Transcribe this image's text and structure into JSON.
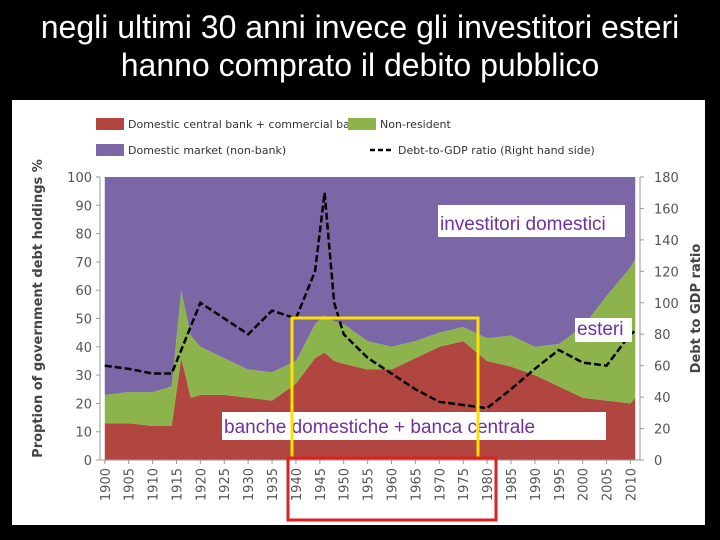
{
  "chart_data": {
    "type": "stacked-area",
    "title": "negli ultimi 30 anni invece gli investitori esteri hanno comprato il debito pubblico",
    "x": [
      1900,
      1905,
      1910,
      1914,
      1916,
      1918,
      1920,
      1925,
      1930,
      1935,
      1940,
      1944,
      1946,
      1948,
      1950,
      1955,
      1960,
      1965,
      1970,
      1975,
      1980,
      1985,
      1990,
      1995,
      2000,
      2005,
      2010,
      2011
    ],
    "xlim": [
      1899,
      2012
    ],
    "xticks": [
      1900,
      1905,
      1910,
      1915,
      1920,
      1925,
      1930,
      1935,
      1940,
      1945,
      1950,
      1955,
      1960,
      1965,
      1970,
      1975,
      1980,
      1985,
      1990,
      1995,
      2000,
      2005,
      2010
    ],
    "ylim": [
      0,
      100
    ],
    "yticks": [
      0,
      10,
      20,
      30,
      40,
      50,
      60,
      70,
      80,
      90,
      100
    ],
    "y2lim": [
      0,
      180
    ],
    "y2ticks": [
      0,
      20,
      40,
      60,
      80,
      100,
      120,
      140,
      160,
      180
    ],
    "y_label": "Proption of government debt holdings %",
    "y2_label": "Debt to GDP ratio",
    "series": [
      {
        "name": "Domestic central bank + commercial bank",
        "color": "#b0463f",
        "values": [
          13,
          13,
          12,
          12,
          36,
          22,
          23,
          23,
          22,
          21,
          27,
          36,
          38,
          35,
          34,
          32,
          32,
          36,
          40,
          42,
          35,
          33,
          30,
          26,
          22,
          21,
          20,
          22
        ]
      },
      {
        "name": "Non-resident",
        "color": "#8db34d",
        "values": [
          10,
          11,
          12,
          14,
          24,
          22,
          17,
          13,
          10,
          10,
          8,
          12,
          13,
          14,
          14,
          10,
          8,
          6,
          5,
          5,
          8,
          11,
          10,
          15,
          25,
          37,
          48,
          49
        ]
      },
      {
        "name": "Domestic market (non-bank)",
        "color": "#7b66a6",
        "values": [
          77,
          76,
          76,
          74,
          40,
          56,
          60,
          64,
          68,
          69,
          65,
          52,
          49,
          51,
          52,
          58,
          60,
          58,
          55,
          53,
          57,
          56,
          60,
          59,
          53,
          42,
          32,
          29
        ]
      },
      {
        "name": "Debt-to-GDP ratio (Right hand side)",
        "color": "#000000",
        "axis": "y2",
        "line": true,
        "values": [
          60,
          58,
          55,
          55,
          70,
          85,
          100,
          90,
          80,
          95,
          90,
          120,
          170,
          100,
          80,
          65,
          55,
          45,
          37,
          35,
          33,
          45,
          58,
          70,
          62,
          60,
          80,
          82
        ]
      }
    ],
    "annotations": [
      "investitori domestici",
      "esteri",
      "banche domestiche + banca centrale"
    ]
  }
}
